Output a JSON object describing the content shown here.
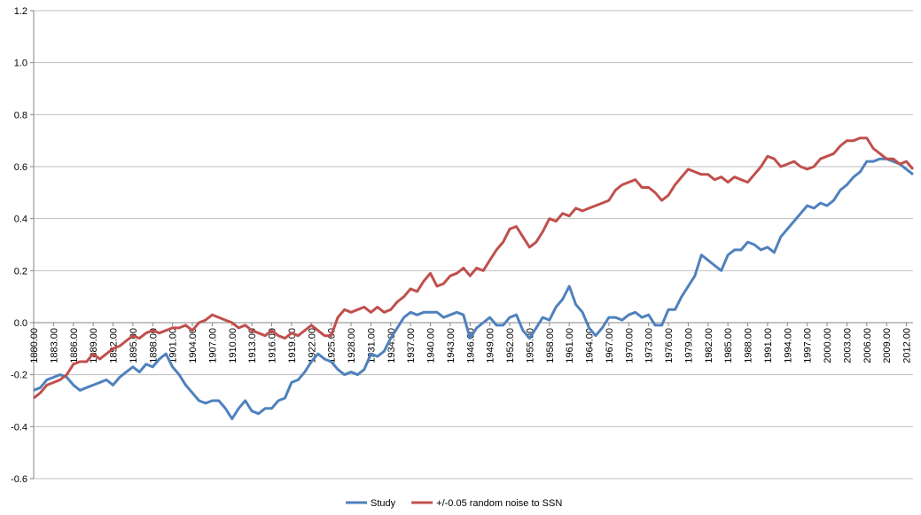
{
  "chart_data": {
    "type": "line",
    "x": [
      1880,
      1881,
      1882,
      1883,
      1884,
      1885,
      1886,
      1887,
      1888,
      1889,
      1890,
      1891,
      1892,
      1893,
      1894,
      1895,
      1896,
      1897,
      1898,
      1899,
      1900,
      1901,
      1902,
      1903,
      1904,
      1905,
      1906,
      1907,
      1908,
      1909,
      1910,
      1911,
      1912,
      1913,
      1914,
      1915,
      1916,
      1917,
      1918,
      1919,
      1920,
      1921,
      1922,
      1923,
      1924,
      1925,
      1926,
      1927,
      1928,
      1929,
      1930,
      1931,
      1932,
      1933,
      1934,
      1935,
      1936,
      1937,
      1938,
      1939,
      1940,
      1941,
      1942,
      1943,
      1944,
      1945,
      1946,
      1947,
      1948,
      1949,
      1950,
      1951,
      1952,
      1953,
      1954,
      1955,
      1956,
      1957,
      1958,
      1959,
      1960,
      1961,
      1962,
      1963,
      1964,
      1965,
      1966,
      1967,
      1968,
      1969,
      1970,
      1971,
      1972,
      1973,
      1974,
      1975,
      1976,
      1977,
      1978,
      1979,
      1980,
      1981,
      1982,
      1983,
      1984,
      1985,
      1986,
      1987,
      1988,
      1989,
      1990,
      1991,
      1992,
      1993,
      1994,
      1995,
      1996,
      1997,
      1998,
      1999,
      2000,
      2001,
      2002,
      2003,
      2004,
      2005,
      2006,
      2007,
      2008,
      2009,
      2010,
      2011,
      2012,
      2013
    ],
    "series": [
      {
        "name": "Study",
        "color": "#4f81bd",
        "values": [
          -0.26,
          -0.25,
          -0.22,
          -0.21,
          -0.2,
          -0.21,
          -0.24,
          -0.26,
          -0.25,
          -0.24,
          -0.23,
          -0.22,
          -0.24,
          -0.21,
          -0.19,
          -0.17,
          -0.19,
          -0.16,
          -0.17,
          -0.14,
          -0.12,
          -0.17,
          -0.2,
          -0.24,
          -0.27,
          -0.3,
          -0.31,
          -0.3,
          -0.3,
          -0.33,
          -0.37,
          -0.33,
          -0.3,
          -0.34,
          -0.35,
          -0.33,
          -0.33,
          -0.3,
          -0.29,
          -0.23,
          -0.22,
          -0.19,
          -0.15,
          -0.12,
          -0.14,
          -0.15,
          -0.18,
          -0.2,
          -0.19,
          -0.2,
          -0.18,
          -0.12,
          -0.13,
          -0.11,
          -0.06,
          -0.02,
          0.02,
          0.04,
          0.03,
          0.04,
          0.04,
          0.04,
          0.02,
          0.03,
          0.04,
          0.03,
          -0.06,
          -0.02,
          0.0,
          0.02,
          -0.01,
          -0.01,
          0.02,
          0.03,
          -0.03,
          -0.06,
          -0.02,
          0.02,
          0.01,
          0.06,
          0.09,
          0.14,
          0.07,
          0.04,
          -0.02,
          -0.05,
          -0.02,
          0.02,
          0.02,
          0.01,
          0.03,
          0.04,
          0.02,
          0.03,
          -0.01,
          -0.01,
          0.05,
          0.05,
          0.1,
          0.14,
          0.18,
          0.26,
          0.24,
          0.22,
          0.2,
          0.26,
          0.28,
          0.28,
          0.31,
          0.3,
          0.28,
          0.29,
          0.27,
          0.33,
          0.36,
          0.39,
          0.42,
          0.45,
          0.44,
          0.46,
          0.45,
          0.47,
          0.51,
          0.53,
          0.56,
          0.58,
          0.62,
          0.62,
          0.63,
          0.63,
          0.62,
          0.61,
          0.59,
          0.57
        ]
      },
      {
        "name": "+/-0.05 random noise to SSN",
        "color": "#c0504d",
        "values": [
          -0.29,
          -0.27,
          -0.24,
          -0.23,
          -0.22,
          -0.2,
          -0.16,
          -0.15,
          -0.15,
          -0.12,
          -0.14,
          -0.12,
          -0.1,
          -0.09,
          -0.07,
          -0.05,
          -0.06,
          -0.04,
          -0.03,
          -0.04,
          -0.03,
          -0.02,
          -0.02,
          -0.01,
          -0.03,
          0.0,
          0.01,
          0.03,
          0.02,
          0.01,
          0.0,
          -0.02,
          -0.01,
          -0.03,
          -0.04,
          -0.05,
          -0.03,
          -0.05,
          -0.06,
          -0.04,
          -0.05,
          -0.03,
          -0.01,
          -0.03,
          -0.05,
          -0.05,
          0.02,
          0.05,
          0.04,
          0.05,
          0.06,
          0.04,
          0.06,
          0.04,
          0.05,
          0.08,
          0.1,
          0.13,
          0.12,
          0.16,
          0.19,
          0.14,
          0.15,
          0.18,
          0.19,
          0.21,
          0.18,
          0.21,
          0.2,
          0.24,
          0.28,
          0.31,
          0.36,
          0.37,
          0.33,
          0.29,
          0.31,
          0.35,
          0.4,
          0.39,
          0.42,
          0.41,
          0.44,
          0.43,
          0.44,
          0.45,
          0.46,
          0.47,
          0.51,
          0.53,
          0.54,
          0.55,
          0.52,
          0.52,
          0.5,
          0.47,
          0.49,
          0.53,
          0.56,
          0.59,
          0.58,
          0.57,
          0.57,
          0.55,
          0.56,
          0.54,
          0.56,
          0.55,
          0.54,
          0.57,
          0.6,
          0.64,
          0.63,
          0.6,
          0.61,
          0.62,
          0.6,
          0.59,
          0.6,
          0.63,
          0.64,
          0.65,
          0.68,
          0.7,
          0.7,
          0.71,
          0.71,
          0.67,
          0.65,
          0.63,
          0.63,
          0.61,
          0.62,
          0.59
        ]
      }
    ],
    "xlim": [
      1880,
      2013
    ],
    "xticks": [
      {
        "value": 1880,
        "label": "1880.00"
      },
      {
        "value": 1883,
        "label": "1883.00"
      },
      {
        "value": 1886,
        "label": "1886.00"
      },
      {
        "value": 1889,
        "label": "1889.00"
      },
      {
        "value": 1892,
        "label": "1892.00"
      },
      {
        "value": 1895,
        "label": "1895.00"
      },
      {
        "value": 1898,
        "label": "1898.00"
      },
      {
        "value": 1901,
        "label": "1901.00"
      },
      {
        "value": 1904,
        "label": "1904.00"
      },
      {
        "value": 1907,
        "label": "1907.00"
      },
      {
        "value": 1910,
        "label": "1910.00"
      },
      {
        "value": 1913,
        "label": "1913.00"
      },
      {
        "value": 1916,
        "label": "1916.00"
      },
      {
        "value": 1919,
        "label": "1919.00"
      },
      {
        "value": 1922,
        "label": "1922.00"
      },
      {
        "value": 1925,
        "label": "1925.00"
      },
      {
        "value": 1928,
        "label": "1928.00"
      },
      {
        "value": 1931,
        "label": "1931.00"
      },
      {
        "value": 1934,
        "label": "1934.00"
      },
      {
        "value": 1937,
        "label": "1937.00"
      },
      {
        "value": 1940,
        "label": "1940.00"
      },
      {
        "value": 1943,
        "label": "1943.00"
      },
      {
        "value": 1946,
        "label": "1946.00"
      },
      {
        "value": 1949,
        "label": "1949.00"
      },
      {
        "value": 1952,
        "label": "1952.00"
      },
      {
        "value": 1955,
        "label": "1955.00"
      },
      {
        "value": 1958,
        "label": "1958.00"
      },
      {
        "value": 1961,
        "label": "1961.00"
      },
      {
        "value": 1964,
        "label": "1964.00"
      },
      {
        "value": 1967,
        "label": "1967.00"
      },
      {
        "value": 1970,
        "label": "1970.00"
      },
      {
        "value": 1973,
        "label": "1973.00"
      },
      {
        "value": 1976,
        "label": "1976.00"
      },
      {
        "value": 1979,
        "label": "1979.00"
      },
      {
        "value": 1982,
        "label": "1982.00"
      },
      {
        "value": 1985,
        "label": "1985.00"
      },
      {
        "value": 1988,
        "label": "1988.00"
      },
      {
        "value": 1991,
        "label": "1991.00"
      },
      {
        "value": 1994,
        "label": "1994.00"
      },
      {
        "value": 1997,
        "label": "1997.00"
      },
      {
        "value": 2000,
        "label": "2000.00"
      },
      {
        "value": 2003,
        "label": "2003.00"
      },
      {
        "value": 2006,
        "label": "2006.00"
      },
      {
        "value": 2009,
        "label": "2009.00"
      },
      {
        "value": 2012,
        "label": "2012.00"
      }
    ],
    "ylim": [
      -0.6,
      1.2
    ],
    "yticks": [
      -0.6,
      -0.4,
      -0.2,
      {
        "value": 0,
        "label": "0.0"
      },
      0.2,
      0.4,
      0.6,
      0.8,
      {
        "value": 1,
        "label": "1.0"
      },
      1.2
    ],
    "grid": true,
    "legend": "bottom"
  }
}
